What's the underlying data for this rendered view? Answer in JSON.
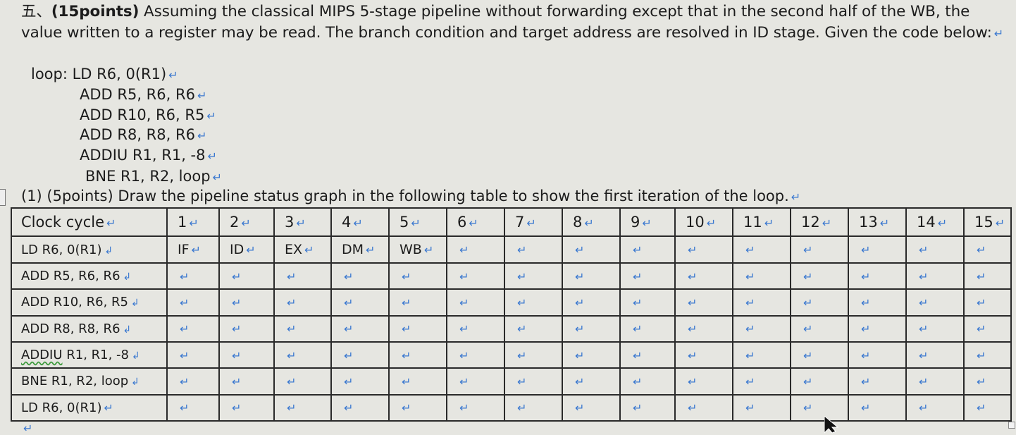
{
  "problem": {
    "number": "五、",
    "points": "(15points)",
    "text": " Assuming the classical MIPS 5-stage pipeline without forwarding except that in the second half of the WB, the value written to a register may be read. The branch condition and target address are resolved in ID stage. Given the code below:",
    "return_mark": "↵"
  },
  "code": [
    "loop: LD R6, 0(R1)",
    "ADD R5, R6, R6",
    "ADD R10, R6, R5",
    "ADD R8, R8, R6",
    "ADDIU R1, R1, -8",
    "BNE R1, R2, loop"
  ],
  "subquestion": "(1) (5points) Draw the pipeline status graph in the following table to show the first iteration of the loop.",
  "table": {
    "header_label": "Clock cycle",
    "cycles": [
      "1",
      "2",
      "3",
      "4",
      "5",
      "6",
      "7",
      "8",
      "9",
      "10",
      "11",
      "12",
      "13",
      "14",
      "15"
    ],
    "rows": [
      {
        "label": "LD R6, 0(R1)",
        "cells": [
          "IF",
          "ID",
          "EX",
          "DM",
          "WB",
          "",
          "",
          "",
          "",
          "",
          "",
          "",
          "",
          "",
          ""
        ]
      },
      {
        "label": "ADD R5, R6, R6",
        "cells": [
          "",
          "",
          "",
          "",
          "",
          "",
          "",
          "",
          "",
          "",
          "",
          "",
          "",
          "",
          ""
        ]
      },
      {
        "label": "ADD R10, R6, R5",
        "cells": [
          "",
          "",
          "",
          "",
          "",
          "",
          "",
          "",
          "",
          "",
          "",
          "",
          "",
          "",
          ""
        ]
      },
      {
        "label": "ADD R8, R8, R6",
        "cells": [
          "",
          "",
          "",
          "",
          "",
          "",
          "",
          "",
          "",
          "",
          "",
          "",
          "",
          "",
          ""
        ]
      },
      {
        "label_underlined": "ADDIU",
        "label_rest": " R1, R1, -8",
        "cells": [
          "",
          "",
          "",
          "",
          "",
          "",
          "",
          "",
          "",
          "",
          "",
          "",
          "",
          "",
          ""
        ]
      },
      {
        "label": "BNE R1, R2, loop",
        "cells": [
          "",
          "",
          "",
          "",
          "",
          "",
          "",
          "",
          "",
          "",
          "",
          "",
          "",
          "",
          ""
        ]
      },
      {
        "label": "LD R6, 0(R1)",
        "cells": [
          "",
          "",
          "",
          "",
          "",
          "",
          "",
          "",
          "",
          "",
          "",
          "",
          "",
          "",
          ""
        ]
      }
    ],
    "cell_mark": "↵",
    "label_tail": "↲"
  }
}
